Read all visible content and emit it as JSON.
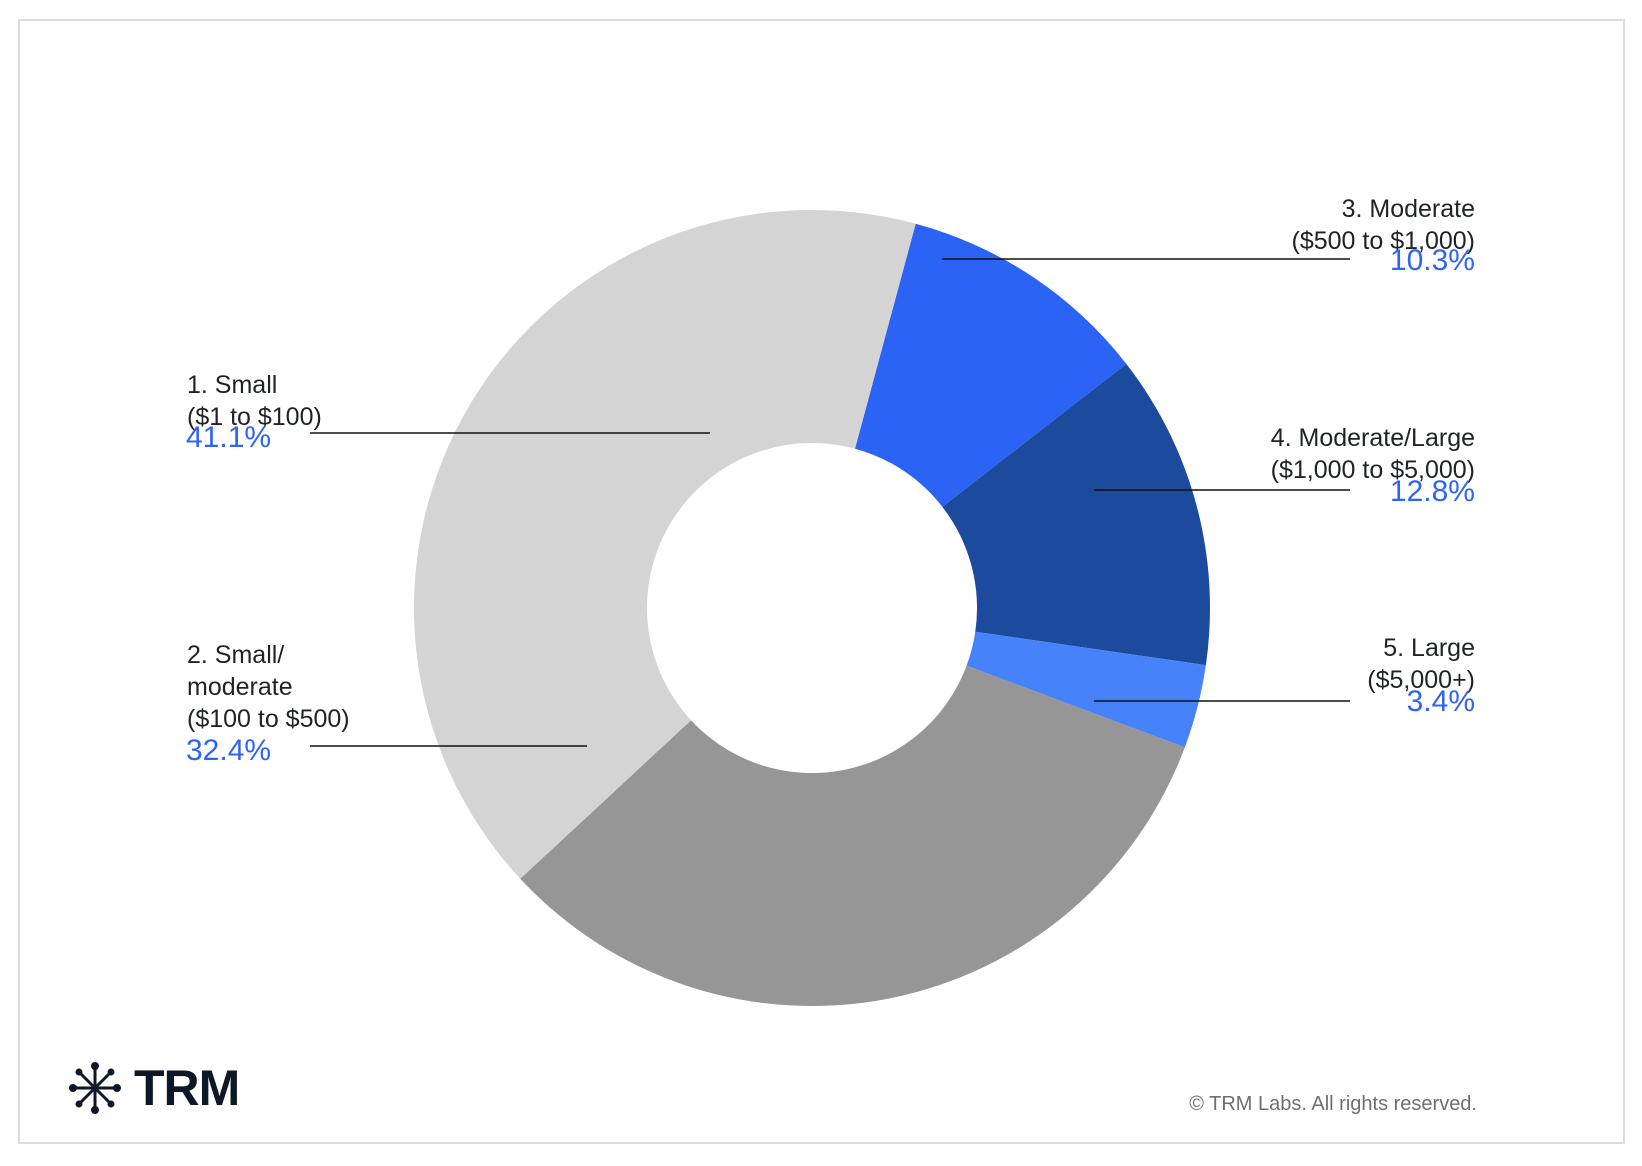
{
  "chart_data": {
    "type": "pie",
    "donut": true,
    "slices": [
      {
        "label_line1": "1. Small",
        "label_line2": "($1 to $100)",
        "value": 41.1,
        "display": "41.1%",
        "color": "#d4d4d4"
      },
      {
        "label_line1": "2. Small/\nmoderate",
        "label_line2": "($100 to $500)",
        "value": 32.4,
        "display": "32.4%",
        "color": "#969696"
      },
      {
        "label_line1": "3. Moderate",
        "label_line2": "($500 to $1,000)",
        "value": 10.3,
        "display": "10.3%",
        "color": "#2b63f5"
      },
      {
        "label_line1": "4. Moderate/Large",
        "label_line2": "($1,000 to $5,000)",
        "value": 12.8,
        "display": "12.8%",
        "color": "#1c4a9c"
      },
      {
        "label_line1": "5. Large",
        "label_line2": "($5,000+)",
        "value": 3.4,
        "display": "3.4%",
        "color": "#4683fb"
      }
    ],
    "value_color": "#2f63f4"
  },
  "brand": {
    "name": "TRM",
    "icon": "network-star-icon"
  },
  "footer": {
    "copyright": "© TRM Labs. All rights reserved."
  }
}
